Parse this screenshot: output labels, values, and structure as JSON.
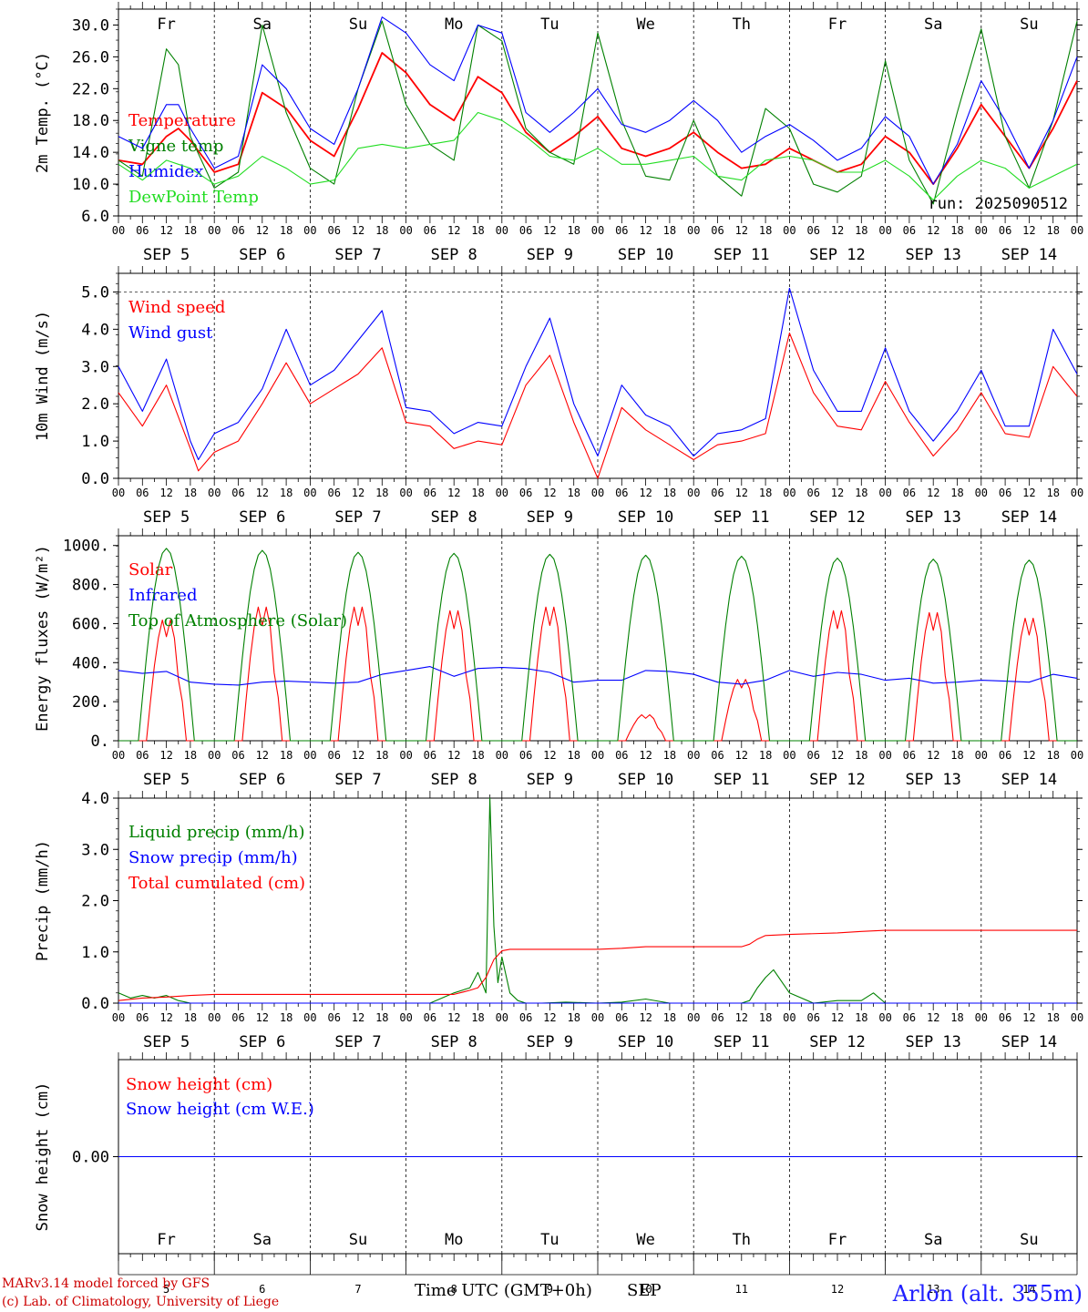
{
  "run_label": "run: 2025090512",
  "location": "Arlon (alt. 355m)",
  "footer": {
    "line1": "MARv3.14 model forced by GFS",
    "line2": "(c) Lab. of Climatology, University of Liege"
  },
  "x_title": "Time UTC (GMT+0h)",
  "month_label": "SEP",
  "hour_ticks": [
    "00",
    "06",
    "12",
    "18"
  ],
  "dates": [
    "SEP  5",
    "SEP  6",
    "SEP  7",
    "SEP  8",
    "SEP  9",
    "SEP 10",
    "SEP 11",
    "SEP 12",
    "SEP 13",
    "SEP 14"
  ],
  "day_numbers": [
    "5",
    "6",
    "7",
    "8",
    "9",
    "10",
    "11",
    "12",
    "13",
    "14"
  ],
  "weekdays": [
    {
      "label": "Fr",
      "weekend": false
    },
    {
      "label": "Sa",
      "weekend": true
    },
    {
      "label": "Su",
      "weekend": true
    },
    {
      "label": "Mo",
      "weekend": false
    },
    {
      "label": "Tu",
      "weekend": false
    },
    {
      "label": "We",
      "weekend": false
    },
    {
      "label": "Th",
      "weekend": false
    },
    {
      "label": "Fr",
      "weekend": false
    },
    {
      "label": "Sa",
      "weekend": true
    },
    {
      "label": "Su",
      "weekend": true
    }
  ],
  "colors": {
    "red": "#ff0000",
    "green": "#008000",
    "blue": "#0000ff",
    "lightgreen": "#22dd22",
    "weekend": "#ff0000"
  },
  "chart_data": [
    {
      "type": "line",
      "ylabel": "2m Temp. (°C)",
      "ylim": [
        6,
        32
      ],
      "yticks": [
        "30.0",
        "26.0",
        "22.0",
        "18.0",
        "14.0",
        "10.0",
        "6.0"
      ],
      "x_unit": "hours since SEP 5 00 UTC",
      "series": [
        {
          "name": "Temperature",
          "color": "red",
          "x": [
            0,
            6,
            12,
            15,
            18,
            24,
            30,
            36,
            42,
            48,
            54,
            60,
            66,
            72,
            78,
            84,
            90,
            96,
            102,
            108,
            114,
            120,
            126,
            132,
            138,
            144,
            150,
            156,
            162,
            168,
            174,
            180,
            186,
            192,
            198,
            204,
            210,
            216,
            222,
            228,
            234,
            240
          ],
          "y": [
            13,
            12.5,
            16,
            17,
            15.5,
            11.5,
            12.5,
            21.5,
            19.5,
            15.5,
            13.5,
            19.5,
            26.5,
            24,
            20,
            18,
            23.5,
            21.5,
            16.5,
            14,
            16,
            18.5,
            14.5,
            13.5,
            14.5,
            16.5,
            14,
            12,
            12.5,
            14.5,
            13,
            11.5,
            12.5,
            16,
            14,
            10,
            14.5,
            20,
            16,
            12,
            17,
            23
          ]
        },
        {
          "name": "Vigne temp",
          "color": "green",
          "x": [
            0,
            6,
            12,
            15,
            18,
            24,
            30,
            36,
            42,
            48,
            54,
            60,
            66,
            72,
            78,
            84,
            90,
            96,
            102,
            108,
            114,
            120,
            126,
            132,
            138,
            144,
            150,
            156,
            162,
            168,
            174,
            180,
            186,
            192,
            198,
            204,
            210,
            216,
            222,
            228,
            234,
            240
          ],
          "y": [
            13,
            11,
            27,
            25,
            16,
            9.5,
            11.5,
            30,
            19,
            12,
            10,
            22,
            30.5,
            20,
            15,
            13,
            30,
            28,
            17,
            14,
            12.5,
            29,
            18,
            11,
            10.5,
            18,
            11,
            8.5,
            19.5,
            17,
            10,
            9,
            11,
            25.5,
            13,
            7.5,
            19,
            29.5,
            16,
            9.5,
            18,
            30.5
          ]
        },
        {
          "name": "Humidex",
          "color": "blue",
          "x": [
            0,
            6,
            12,
            15,
            18,
            24,
            30,
            36,
            42,
            48,
            54,
            60,
            66,
            72,
            78,
            84,
            90,
            96,
            102,
            108,
            114,
            120,
            126,
            132,
            138,
            144,
            150,
            156,
            162,
            168,
            174,
            180,
            186,
            192,
            198,
            204,
            210,
            216,
            222,
            228,
            234,
            240
          ],
          "y": [
            16,
            14.5,
            20,
            20,
            17,
            12,
            13.5,
            25,
            22,
            17,
            15,
            22,
            31,
            29,
            25,
            23,
            30,
            29,
            19,
            16.5,
            19,
            22,
            17.5,
            16.5,
            18,
            20.5,
            18,
            14,
            16,
            17.5,
            15.5,
            13,
            14.5,
            18.5,
            16,
            10,
            15,
            23,
            18,
            12,
            18,
            26
          ]
        },
        {
          "name": "DewPoint Temp",
          "color": "lightgreen",
          "x": [
            0,
            6,
            12,
            15,
            18,
            24,
            30,
            36,
            42,
            48,
            54,
            60,
            66,
            72,
            78,
            84,
            90,
            96,
            102,
            108,
            114,
            120,
            126,
            132,
            138,
            144,
            150,
            156,
            162,
            168,
            174,
            180,
            186,
            192,
            198,
            204,
            210,
            216,
            222,
            228,
            234,
            240
          ],
          "y": [
            12.5,
            10.5,
            13,
            12.5,
            12,
            10,
            11,
            13.5,
            12,
            10,
            10.5,
            14.5,
            15,
            14.5,
            15,
            15.5,
            19,
            18,
            16,
            13.5,
            13,
            14.5,
            12.5,
            12.5,
            13,
            13.5,
            11,
            10.5,
            13,
            13.5,
            13,
            11.5,
            11.5,
            13,
            11,
            8,
            11,
            13,
            12,
            9.5,
            11,
            12.5
          ]
        }
      ],
      "annotations": [
        "run: 2025090512"
      ]
    },
    {
      "type": "line",
      "ylabel": "10m Wind (m/s)",
      "ylim": [
        0,
        5.5
      ],
      "yticks": [
        "5.0",
        "4.0",
        "3.0",
        "2.0",
        "1.0",
        "0.0"
      ],
      "reference_line": 5.0,
      "x_unit": "hours since SEP 5 00 UTC",
      "series": [
        {
          "name": "Wind speed",
          "color": "red",
          "x": [
            0,
            6,
            12,
            18,
            20,
            24,
            30,
            36,
            42,
            48,
            54,
            60,
            66,
            72,
            78,
            84,
            90,
            96,
            102,
            108,
            114,
            120,
            126,
            132,
            138,
            144,
            150,
            156,
            162,
            168,
            174,
            180,
            186,
            192,
            198,
            204,
            210,
            216,
            222,
            228,
            234,
            240
          ],
          "y": [
            2.3,
            1.4,
            2.5,
            0.8,
            0.2,
            0.7,
            1.0,
            2.0,
            3.1,
            2.0,
            2.4,
            2.8,
            3.5,
            1.5,
            1.4,
            0.8,
            1.0,
            0.9,
            2.5,
            3.3,
            1.5,
            0.0,
            1.9,
            1.3,
            0.9,
            0.5,
            0.9,
            1.0,
            1.2,
            3.9,
            2.3,
            1.4,
            1.3,
            2.6,
            1.5,
            0.6,
            1.3,
            2.3,
            1.2,
            1.1,
            3.0,
            2.2
          ]
        },
        {
          "name": "Wind gust",
          "color": "blue",
          "x": [
            0,
            6,
            12,
            18,
            20,
            24,
            30,
            36,
            42,
            48,
            54,
            60,
            66,
            72,
            78,
            84,
            90,
            96,
            102,
            108,
            114,
            120,
            126,
            132,
            138,
            144,
            150,
            156,
            162,
            168,
            174,
            180,
            186,
            192,
            198,
            204,
            210,
            216,
            222,
            228,
            234,
            240
          ],
          "y": [
            3.0,
            1.8,
            3.2,
            1.0,
            0.5,
            1.2,
            1.5,
            2.4,
            4.0,
            2.5,
            2.9,
            3.7,
            4.5,
            1.9,
            1.8,
            1.2,
            1.5,
            1.4,
            3.0,
            4.3,
            2.0,
            0.6,
            2.5,
            1.7,
            1.4,
            0.6,
            1.2,
            1.3,
            1.6,
            5.1,
            2.9,
            1.8,
            1.8,
            3.5,
            1.8,
            1.0,
            1.8,
            2.9,
            1.4,
            1.4,
            4.0,
            2.8
          ]
        }
      ]
    },
    {
      "type": "line",
      "ylabel": "Energy fluxes (W/m²)",
      "ylim": [
        0,
        1050
      ],
      "yticks": [
        "1000.",
        "800.",
        "600.",
        "400.",
        "200.",
        "0."
      ],
      "x_unit": "hours since SEP 5 00 UTC",
      "series": [
        {
          "name": "Solar",
          "color": "red",
          "peaks": [
            650,
            720,
            720,
            700,
            720,
            140,
            330,
            700,
            690,
            660
          ]
        },
        {
          "name": "Infrared",
          "color": "blue",
          "x": [
            0,
            6,
            12,
            18,
            24,
            30,
            36,
            42,
            48,
            54,
            60,
            66,
            72,
            78,
            84,
            90,
            96,
            102,
            108,
            114,
            120,
            126,
            132,
            138,
            144,
            150,
            156,
            162,
            168,
            174,
            180,
            186,
            192,
            198,
            204,
            210,
            216,
            222,
            228,
            234,
            240
          ],
          "y": [
            360,
            345,
            355,
            300,
            290,
            285,
            300,
            305,
            300,
            295,
            300,
            340,
            360,
            380,
            330,
            370,
            375,
            370,
            350,
            300,
            310,
            310,
            360,
            355,
            340,
            300,
            290,
            310,
            360,
            330,
            350,
            340,
            310,
            320,
            295,
            300,
            310,
            305,
            300,
            340,
            320
          ]
        },
        {
          "name": "Top of Atmosphere (Solar)",
          "color": "green",
          "peaks": [
            985,
            975,
            965,
            960,
            955,
            950,
            945,
            935,
            930,
            925
          ]
        }
      ]
    },
    {
      "type": "line",
      "ylabel": "Precip (mm/h)",
      "ylim": [
        0,
        4
      ],
      "yticks": [
        "4.0",
        "3.0",
        "2.0",
        "1.0",
        "0.0"
      ],
      "x_unit": "hours since SEP 5 00 UTC",
      "series": [
        {
          "name": "Liquid precip (mm/h)",
          "color": "green",
          "x": [
            0,
            3,
            6,
            9,
            12,
            15,
            18,
            24,
            30,
            36,
            42,
            48,
            54,
            60,
            66,
            72,
            78,
            81,
            84,
            88,
            90,
            92,
            93,
            94,
            95,
            96,
            98,
            100,
            102,
            106,
            112,
            120,
            126,
            132,
            138,
            144,
            150,
            156,
            158,
            160,
            162,
            164,
            168,
            174,
            180,
            186,
            189,
            192,
            198,
            240
          ],
          "y": [
            0.2,
            0.1,
            0.15,
            0.1,
            0.15,
            0.05,
            0.0,
            0.0,
            0.0,
            0.0,
            0.0,
            0.0,
            0.0,
            0.0,
            0.0,
            0.0,
            0.0,
            0.1,
            0.2,
            0.3,
            0.6,
            0.2,
            4.0,
            1.5,
            0.4,
            0.9,
            0.2,
            0.05,
            0.0,
            0.0,
            0.02,
            0.0,
            0.02,
            0.08,
            0.0,
            0.0,
            0.0,
            0.0,
            0.05,
            0.3,
            0.5,
            0.65,
            0.2,
            0.0,
            0.05,
            0.05,
            0.2,
            0.0,
            0.0,
            0.0
          ]
        },
        {
          "name": "Snow precip (mm/h)",
          "color": "blue",
          "x": [
            0,
            240
          ],
          "y": [
            0,
            0
          ]
        },
        {
          "name": "Total cumulated (cm)",
          "color": "red",
          "x": [
            0,
            6,
            12,
            18,
            24,
            48,
            72,
            84,
            88,
            90,
            92,
            94,
            96,
            98,
            120,
            126,
            132,
            144,
            156,
            158,
            160,
            162,
            168,
            180,
            186,
            192,
            198,
            204,
            240
          ],
          "y": [
            0.05,
            0.1,
            0.12,
            0.15,
            0.17,
            0.17,
            0.17,
            0.17,
            0.25,
            0.3,
            0.5,
            0.85,
            1.02,
            1.05,
            1.05,
            1.07,
            1.1,
            1.1,
            1.1,
            1.15,
            1.25,
            1.32,
            1.34,
            1.37,
            1.4,
            1.42,
            1.42,
            1.42,
            1.42
          ]
        }
      ]
    },
    {
      "type": "line",
      "ylabel": "Snow height (cm)",
      "ylim": [
        -1,
        1
      ],
      "yticks": [
        "0.00"
      ],
      "series": [
        {
          "name": "Snow height (cm)",
          "color": "red",
          "x": [
            0,
            240
          ],
          "y": [
            0,
            0
          ]
        },
        {
          "name": "Snow height (cm W.E.)",
          "color": "blue",
          "x": [
            0,
            240
          ],
          "y": [
            0,
            0
          ]
        }
      ]
    }
  ]
}
